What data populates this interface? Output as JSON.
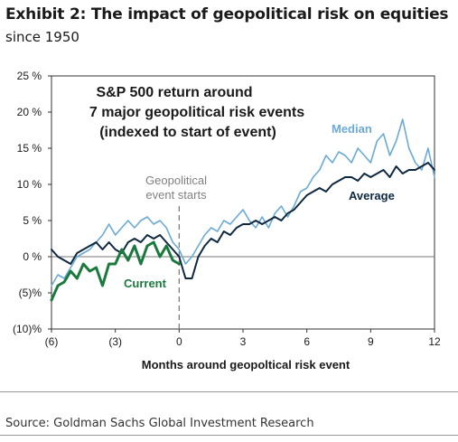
{
  "header": {
    "title": "Exhibit 2: The impact of geopolitical risk on equities",
    "subtitle": "since 1950"
  },
  "footer": {
    "source": "Source: Goldman Sachs Global Investment Research"
  },
  "chart_data": {
    "type": "line",
    "title_lines": [
      "S&P 500 return around",
      "7 major geopolitical risk events",
      "(indexed to start of event)"
    ],
    "xlabel": "Months around geopoltical risk event",
    "ylabel": "",
    "xlim": [
      -6,
      12
    ],
    "ylim": [
      -10,
      25
    ],
    "x_ticks": [
      {
        "value": -6,
        "label": "(6)"
      },
      {
        "value": -3,
        "label": "(3)"
      },
      {
        "value": 0,
        "label": "0"
      },
      {
        "value": 3,
        "label": "3"
      },
      {
        "value": 6,
        "label": "6"
      },
      {
        "value": 9,
        "label": "9"
      },
      {
        "value": 12,
        "label": "12"
      }
    ],
    "y_ticks": [
      {
        "value": 25,
        "label": "25 %"
      },
      {
        "value": 20,
        "label": "20 %"
      },
      {
        "value": 15,
        "label": "15 %"
      },
      {
        "value": 10,
        "label": "10 %"
      },
      {
        "value": 5,
        "label": "5 %"
      },
      {
        "value": 0,
        "label": "0 %"
      },
      {
        "value": -5,
        "label": "(5)%"
      },
      {
        "value": -10,
        "label": "(10)%"
      }
    ],
    "grid": false,
    "event_marker": {
      "x": 0,
      "label_lines": [
        "Geopolitical",
        "event starts"
      ],
      "color": "#808080"
    },
    "series": [
      {
        "name": "Median",
        "color": "#6aaad6",
        "x": [
          -6,
          -5.7,
          -5.4,
          -5.1,
          -4.8,
          -4.5,
          -4.2,
          -3.9,
          -3.6,
          -3.3,
          -3,
          -2.7,
          -2.4,
          -2.1,
          -1.8,
          -1.5,
          -1.2,
          -0.9,
          -0.6,
          -0.3,
          0,
          0.3,
          0.6,
          0.9,
          1.2,
          1.5,
          1.8,
          2.1,
          2.4,
          2.7,
          3,
          3.3,
          3.6,
          3.9,
          4.2,
          4.5,
          4.8,
          5.1,
          5.4,
          5.7,
          6,
          6.3,
          6.6,
          6.9,
          7.2,
          7.5,
          7.8,
          8.1,
          8.4,
          8.7,
          9,
          9.3,
          9.6,
          9.9,
          10.2,
          10.5,
          10.8,
          11.1,
          11.4,
          11.7,
          12
        ],
        "values": [
          -4,
          -2.5,
          -3,
          -1.5,
          0,
          0.5,
          1,
          2,
          3,
          4.5,
          3,
          4,
          5,
          4,
          5,
          5.5,
          4.5,
          5,
          4,
          2,
          1,
          -1,
          0,
          1.5,
          3,
          4,
          3.5,
          5,
          4.5,
          5.5,
          6.5,
          5,
          4,
          5.5,
          4,
          6,
          7,
          5.5,
          7,
          9,
          9.5,
          11,
          12,
          14,
          13,
          14.5,
          14,
          13,
          15,
          14,
          13,
          16,
          17,
          14,
          16,
          19,
          15,
          13,
          12,
          15,
          11
        ]
      },
      {
        "name": "Average",
        "color": "#0e2841",
        "x": [
          -6,
          -5.7,
          -5.4,
          -5.1,
          -4.8,
          -4.5,
          -4.2,
          -3.9,
          -3.6,
          -3.3,
          -3,
          -2.7,
          -2.4,
          -2.1,
          -1.8,
          -1.5,
          -1.2,
          -0.9,
          -0.6,
          -0.3,
          0,
          0.3,
          0.6,
          0.9,
          1.2,
          1.5,
          1.8,
          2.1,
          2.4,
          2.7,
          3,
          3.3,
          3.6,
          3.9,
          4.2,
          4.5,
          4.8,
          5.1,
          5.4,
          5.7,
          6,
          6.3,
          6.6,
          6.9,
          7.2,
          7.5,
          7.8,
          8.1,
          8.4,
          8.7,
          9,
          9.3,
          9.6,
          9.9,
          10.2,
          10.5,
          10.8,
          11.1,
          11.4,
          11.7,
          12
        ],
        "values": [
          1,
          0,
          -0.5,
          -1,
          0.5,
          1,
          1.5,
          2,
          1,
          2,
          1,
          0.5,
          2,
          2.5,
          2,
          3,
          2.5,
          3,
          2,
          1,
          0,
          -3,
          -3,
          0,
          1.5,
          2.5,
          2,
          3.5,
          3,
          4,
          4.5,
          4.5,
          5,
          4.5,
          5,
          5.5,
          5,
          6,
          6.5,
          7.5,
          8.5,
          9,
          9.5,
          9,
          10,
          10.5,
          11,
          11,
          10.5,
          11.5,
          11,
          11.5,
          12,
          11,
          12.5,
          11.5,
          12,
          12,
          12.5,
          13,
          12
        ]
      },
      {
        "name": "Current",
        "color": "#1a7a3e",
        "x": [
          -6,
          -5.7,
          -5.4,
          -5.1,
          -4.8,
          -4.5,
          -4.2,
          -3.9,
          -3.6,
          -3.3,
          -3,
          -2.7,
          -2.4,
          -2.1,
          -1.8,
          -1.5,
          -1.2,
          -0.9,
          -0.6,
          -0.3,
          0
        ],
        "values": [
          -6,
          -4,
          -3.5,
          -2,
          -3,
          -1,
          -2,
          -1.5,
          -4,
          -1,
          -1,
          1,
          -0.5,
          1.5,
          -1,
          1.5,
          2,
          0,
          1.5,
          -0.5,
          -1
        ]
      }
    ],
    "annotations": [
      {
        "text": "Median",
        "color": "#6aaad6"
      },
      {
        "text": "Average",
        "color": "#0e2841"
      },
      {
        "text": "Current",
        "color": "#1a7a3e"
      }
    ]
  }
}
